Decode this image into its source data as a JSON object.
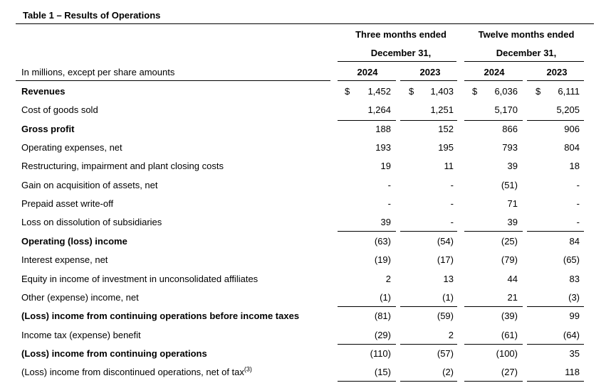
{
  "title": "Table 1 – Results of Operations",
  "header": {
    "three_months_line1": "Three months ended",
    "three_months_line2": "December 31,",
    "twelve_months_line1": "Twelve months ended",
    "twelve_months_line2": "December 31,",
    "units_label": "In millions, except per share amounts",
    "years": [
      "2024",
      "2023",
      "2024",
      "2023"
    ]
  },
  "currency_symbol": "$",
  "rows": [
    {
      "label": "Revenues",
      "bold": true,
      "values": [
        "1,452",
        "1,403",
        "6,036",
        "6,111"
      ]
    },
    {
      "label": "Cost of goods sold",
      "bold": false,
      "values": [
        "1,264",
        "1,251",
        "5,170",
        "5,205"
      ]
    },
    {
      "label": "Gross profit",
      "bold": true,
      "values": [
        "188",
        "152",
        "866",
        "906"
      ]
    },
    {
      "label": "Operating expenses, net",
      "bold": false,
      "values": [
        "193",
        "195",
        "793",
        "804"
      ]
    },
    {
      "label": "Restructuring, impairment and plant closing costs",
      "bold": false,
      "values": [
        "19",
        "11",
        "39",
        "18"
      ]
    },
    {
      "label": "Gain on acquisition of assets, net",
      "bold": false,
      "values": [
        "-",
        "-",
        "(51)",
        "-"
      ]
    },
    {
      "label": "Prepaid asset write-off",
      "bold": false,
      "values": [
        "-",
        "-",
        "71",
        "-"
      ]
    },
    {
      "label": "Loss on dissolution of subsidiaries",
      "bold": false,
      "values": [
        "39",
        "-",
        "39",
        "-"
      ]
    },
    {
      "label": "Operating (loss) income",
      "bold": true,
      "values": [
        "(63)",
        "(54)",
        "(25)",
        "84"
      ]
    },
    {
      "label": "Interest expense, net",
      "bold": false,
      "values": [
        "(19)",
        "(17)",
        "(79)",
        "(65)"
      ]
    },
    {
      "label": "Equity in income of investment in unconsolidated affiliates",
      "bold": false,
      "values": [
        "2",
        "13",
        "44",
        "83"
      ]
    },
    {
      "label": "Other (expense) income, net",
      "bold": false,
      "values": [
        "(1)",
        "(1)",
        "21",
        "(3)"
      ]
    },
    {
      "label": "(Loss) income from continuing operations before income taxes",
      "bold": true,
      "values": [
        "(81)",
        "(59)",
        "(39)",
        "99"
      ]
    },
    {
      "label": "Income tax (expense) benefit",
      "bold": false,
      "values": [
        "(29)",
        "2",
        "(61)",
        "(64)"
      ]
    },
    {
      "label": "(Loss) income from continuing operations",
      "bold": true,
      "values": [
        "(110)",
        "(57)",
        "(100)",
        "35"
      ]
    },
    {
      "label": "(Loss) income from discontinued operations, net of tax",
      "bold": false,
      "footnote": "(3)",
      "values": [
        "(15)",
        "(2)",
        "(27)",
        "118"
      ]
    }
  ]
}
